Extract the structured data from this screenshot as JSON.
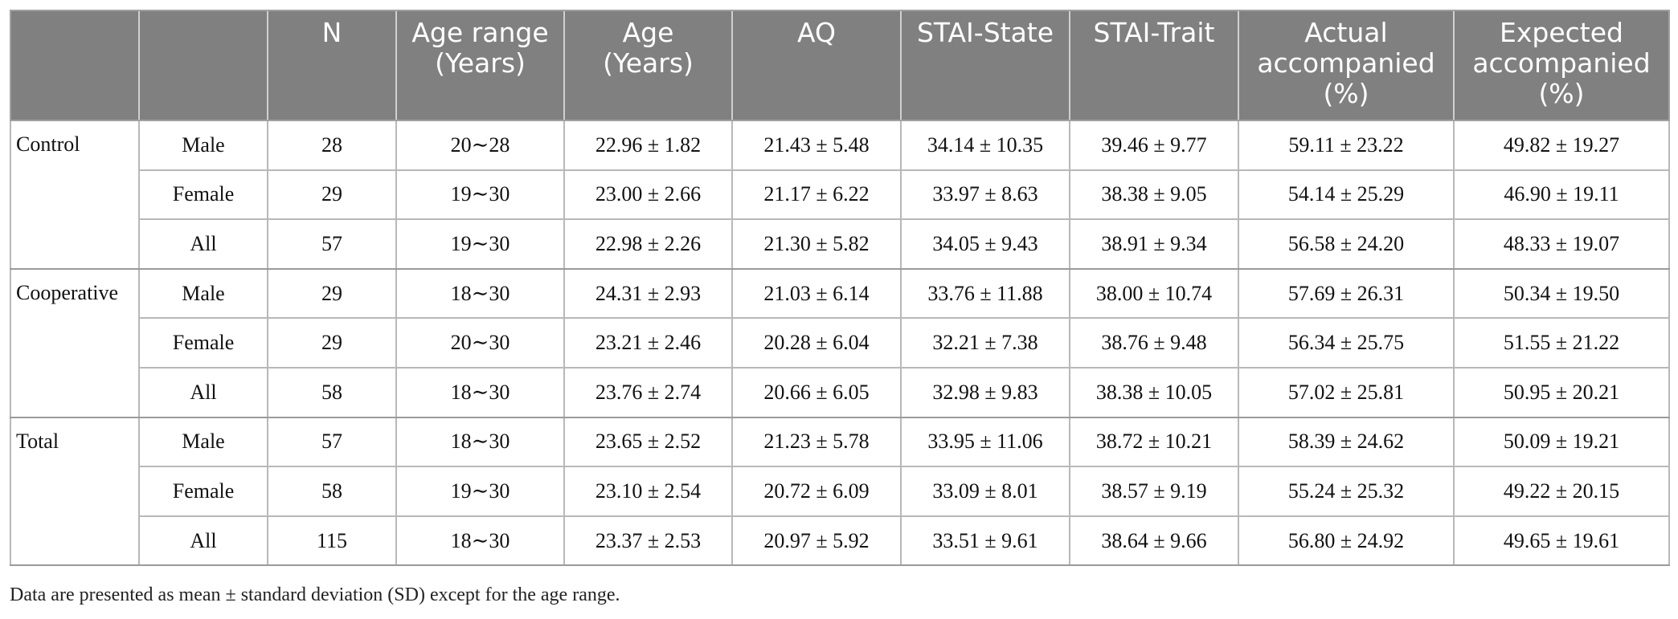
{
  "table": {
    "headers": [
      "",
      "",
      "N",
      "Age range\n(Years)",
      "Age\n(Years)",
      "AQ",
      "STAI-State",
      "STAI-Trait",
      "Actual\naccompanied\n(%)",
      "Expected\naccompanied\n(%)"
    ],
    "groups": [
      {
        "label": "Control",
        "rows": [
          {
            "sex": "Male",
            "n": "28",
            "age_range": "20∼28",
            "age": "22.96 ± 1.82",
            "aq": "21.43 ± 5.48",
            "stai_state": "34.14 ± 10.35",
            "stai_trait": "39.46 ± 9.77",
            "actual": "59.11 ± 23.22",
            "expected": "49.82 ± 19.27"
          },
          {
            "sex": "Female",
            "n": "29",
            "age_range": "19∼30",
            "age": "23.00 ± 2.66",
            "aq": "21.17 ± 6.22",
            "stai_state": "33.97 ± 8.63",
            "stai_trait": "38.38 ± 9.05",
            "actual": "54.14 ± 25.29",
            "expected": "46.90 ± 19.11"
          },
          {
            "sex": "All",
            "n": "57",
            "age_range": "19∼30",
            "age": "22.98 ± 2.26",
            "aq": "21.30 ± 5.82",
            "stai_state": "34.05 ± 9.43",
            "stai_trait": "38.91 ± 9.34",
            "actual": "56.58 ± 24.20",
            "expected": "48.33 ± 19.07"
          }
        ]
      },
      {
        "label": "Cooperative",
        "rows": [
          {
            "sex": "Male",
            "n": "29",
            "age_range": "18∼30",
            "age": "24.31 ± 2.93",
            "aq": "21.03 ± 6.14",
            "stai_state": "33.76 ± 11.88",
            "stai_trait": "38.00 ± 10.74",
            "actual": "57.69 ± 26.31",
            "expected": "50.34 ± 19.50"
          },
          {
            "sex": "Female",
            "n": "29",
            "age_range": "20∼30",
            "age": "23.21 ± 2.46",
            "aq": "20.28 ± 6.04",
            "stai_state": "32.21 ± 7.38",
            "stai_trait": "38.76 ± 9.48",
            "actual": "56.34 ± 25.75",
            "expected": "51.55 ± 21.22"
          },
          {
            "sex": "All",
            "n": "58",
            "age_range": "18∼30",
            "age": "23.76 ± 2.74",
            "aq": "20.66 ± 6.05",
            "stai_state": "32.98 ± 9.83",
            "stai_trait": "38.38 ± 10.05",
            "actual": "57.02 ± 25.81",
            "expected": "50.95 ± 20.21"
          }
        ]
      },
      {
        "label": "Total",
        "rows": [
          {
            "sex": "Male",
            "n": "57",
            "age_range": "18∼30",
            "age": "23.65 ± 2.52",
            "aq": "21.23 ± 5.78",
            "stai_state": "33.95 ± 11.06",
            "stai_trait": "38.72 ± 10.21",
            "actual": "58.39 ± 24.62",
            "expected": "50.09 ± 19.21"
          },
          {
            "sex": "Female",
            "n": "58",
            "age_range": "19∼30",
            "age": "23.10 ± 2.54",
            "aq": "20.72 ± 6.09",
            "stai_state": "33.09 ± 8.01",
            "stai_trait": "38.57 ± 9.19",
            "actual": "55.24 ± 25.32",
            "expected": "49.22 ± 20.15"
          },
          {
            "sex": "All",
            "n": "115",
            "age_range": "18∼30",
            "age": "23.37 ± 2.53",
            "aq": "20.97 ± 5.92",
            "stai_state": "33.51 ± 9.61",
            "stai_trait": "38.64 ± 9.66",
            "actual": "56.80 ± 24.92",
            "expected": "49.65 ± 19.61"
          }
        ]
      }
    ]
  },
  "footnote": "Data are presented as mean ± standard deviation (SD) except for the age range."
}
